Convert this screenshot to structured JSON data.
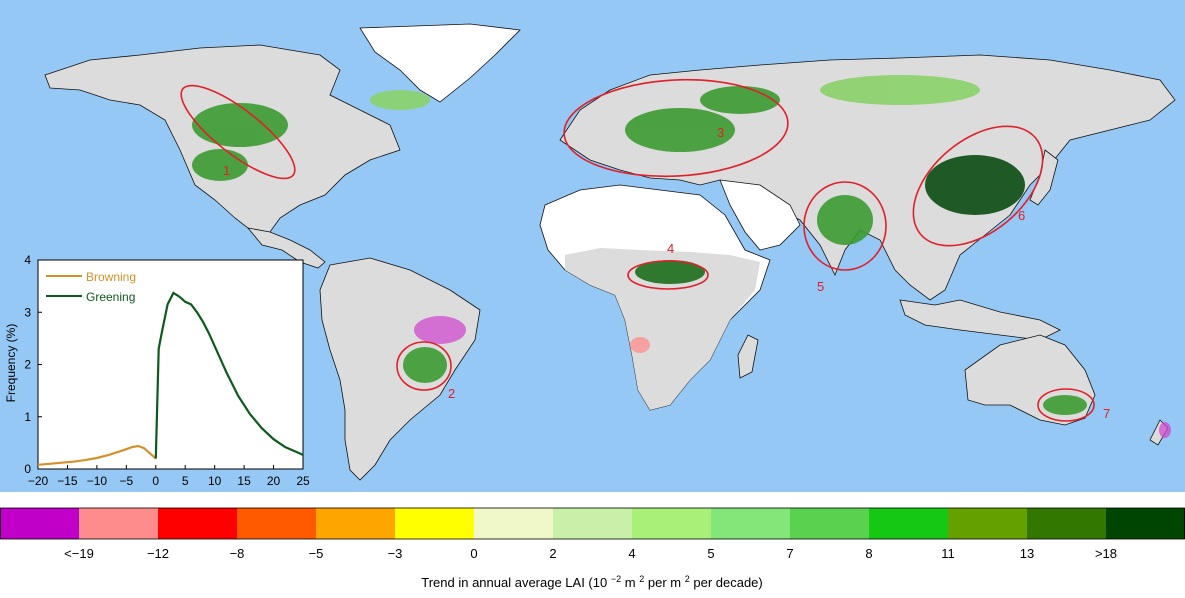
{
  "map": {
    "ocean_color": "#96c8f5",
    "land_color": "#dcdcdc",
    "desert_color": "#ffffff",
    "border_color": "#111111",
    "highlight_color": "#e0202a",
    "regions": [
      {
        "label": "1"
      },
      {
        "label": "2"
      },
      {
        "label": "3"
      },
      {
        "label": "4"
      },
      {
        "label": "5"
      },
      {
        "label": "6"
      },
      {
        "label": "7"
      }
    ]
  },
  "inset": {
    "chart_data": {
      "type": "line",
      "xlim": [
        -20,
        25
      ],
      "ylim": [
        0,
        4
      ],
      "x_ticks": [
        "−20",
        "−15",
        "−10",
        "−5",
        "0",
        "5",
        "10",
        "15",
        "20",
        "25"
      ],
      "y_ticks": [
        "0",
        "1",
        "2",
        "3",
        "4"
      ],
      "ylabel": "Frequency (%)",
      "legend_position": "top-left",
      "series": [
        {
          "name": "Browning",
          "color": "#d4912a",
          "x": [
            -20,
            -18,
            -16,
            -14,
            -12,
            -10,
            -8,
            -6,
            -4,
            -3,
            -2,
            -1,
            0
          ],
          "y": [
            0.08,
            0.1,
            0.12,
            0.14,
            0.17,
            0.21,
            0.27,
            0.34,
            0.42,
            0.44,
            0.4,
            0.3,
            0.2
          ]
        },
        {
          "name": "Greening",
          "color": "#0e5a1e",
          "x": [
            0,
            0.5,
            1,
            2,
            3,
            4,
            5,
            6,
            7,
            8,
            9,
            10,
            12,
            14,
            16,
            18,
            20,
            22,
            24,
            25
          ],
          "y": [
            0.2,
            2.3,
            2.6,
            3.15,
            3.37,
            3.3,
            3.2,
            3.15,
            3.0,
            2.82,
            2.6,
            2.35,
            1.85,
            1.4,
            1.05,
            0.78,
            0.57,
            0.42,
            0.32,
            0.27
          ]
        }
      ]
    }
  },
  "legend": {
    "title_prefix": "Trend in annual average LAI (10",
    "title_exp1": "−2",
    "title_mid1": " m",
    "title_exp2": "2",
    "title_mid2": " per m",
    "title_exp3": "2",
    "title_suffix": " per decade)",
    "colors": [
      "#c000c8",
      "#ff8c8c",
      "#ff0000",
      "#ff5a00",
      "#ffa500",
      "#ffff00",
      "#f0f8c8",
      "#c8f0a8",
      "#a8f078",
      "#82e678",
      "#5ad250",
      "#14c814",
      "#64a000",
      "#327800",
      "#004600"
    ],
    "ticks": [
      "<−19",
      "−12",
      "−8",
      "−5",
      "−3",
      "0",
      "2",
      "4",
      "5",
      "7",
      "8",
      "11",
      "13",
      ">18"
    ]
  }
}
